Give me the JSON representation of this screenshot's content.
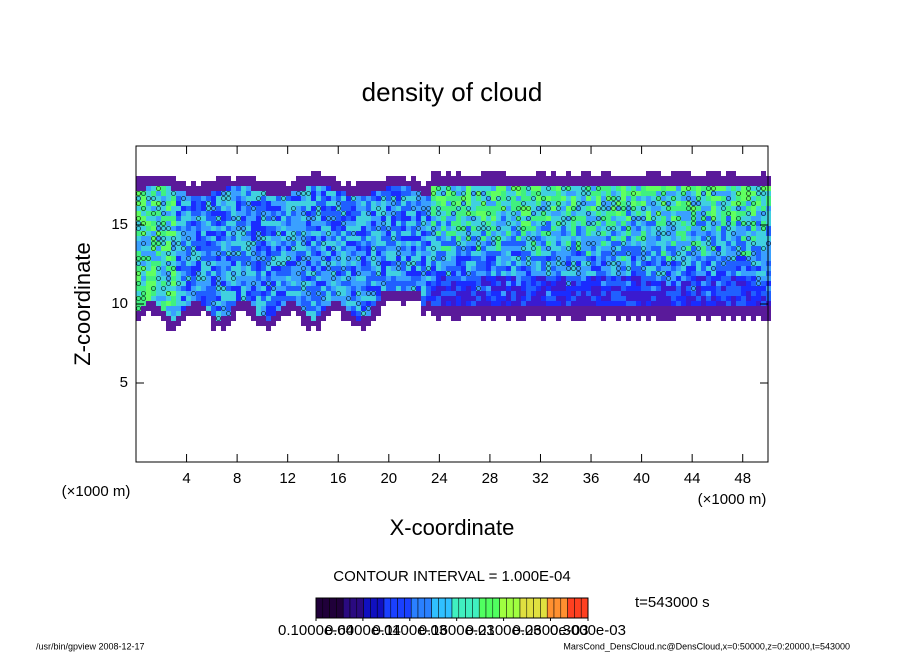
{
  "chart_data": {
    "type": "contour",
    "title": "density of cloud",
    "x_label": "X-coordinate",
    "y_label": "Z-coordinate",
    "x_unit": "(×1000 m)",
    "y_unit": "(×1000 m)",
    "xlim": [
      0,
      50
    ],
    "xticks": [
      4,
      8,
      12,
      16,
      20,
      24,
      28,
      32,
      36,
      40,
      44,
      48
    ],
    "ylim": [
      0,
      20
    ],
    "yticks": [
      5,
      10,
      15
    ],
    "contour_interval": "CONTOUR INTERVAL = 1.000E-04",
    "time_label": "t=543000 s",
    "colorbar_lim": [
      1e-05,
      0.0003
    ],
    "colorbar_ticks": [
      {
        "value": 1e-05,
        "label": "0.1000e-04"
      },
      {
        "value": 6e-05,
        "label": "0.6000e-04"
      },
      {
        "value": 0.00011,
        "label": "0.1100e-03"
      },
      {
        "value": 0.00016,
        "label": "0.1600e-03"
      },
      {
        "value": 0.00021,
        "label": "0.2100e-03"
      },
      {
        "value": 0.00026,
        "label": "0.2600e-03"
      },
      {
        "value": 0.0003,
        "label": "0.3000e-03"
      }
    ],
    "footer_left": "/usr/bin/gpview  2008-12-17",
    "footer_right": "MarsCond_DensCloud.nc@DensCloud,x=0:50000,z=0:20000,t=543000"
  }
}
